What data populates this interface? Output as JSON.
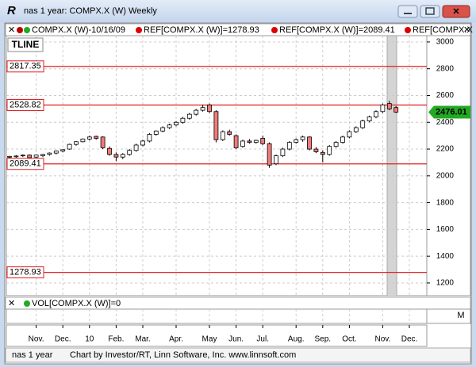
{
  "window": {
    "title": "nas 1 year: COMPX.X (W) Weekly",
    "legend": [
      "COMPX.X (W)-10/16/09",
      "REF[COMPX.X (W)]=1278.93",
      "REF[COMPX.X (W)]=2089.41",
      "REF[COMPX.X"
    ],
    "tline_label": "TLINE",
    "volume_legend": "VOL[COMPX.X (W)]=0",
    "volume_axis_label": "M",
    "status": [
      "nas 1 year",
      "Chart by Investor/RT, Linn Software, Inc. www.linnsoft.com"
    ]
  },
  "chart_data": {
    "type": "candlestick",
    "categories": [
      null,
      null,
      null,
      null,
      "Nov.",
      null,
      null,
      null,
      "Dec.",
      null,
      null,
      null,
      "10",
      null,
      null,
      null,
      "Feb.",
      null,
      null,
      null,
      "Mar.",
      null,
      null,
      null,
      null,
      "Apr.",
      null,
      null,
      null,
      null,
      "May",
      null,
      null,
      null,
      "Jun.",
      null,
      null,
      null,
      "Jul.",
      null,
      null,
      null,
      null,
      "Aug.",
      null,
      null,
      null,
      "Sep.",
      null,
      null,
      null,
      "Oct.",
      null,
      null,
      null,
      null,
      "Nov.",
      null,
      null,
      null,
      "Dec.",
      null
    ],
    "open": [
      2140,
      2145,
      2150,
      2155,
      2140,
      2150,
      2160,
      2170,
      2185,
      2200,
      2235,
      2255,
      2275,
      2295,
      2290,
      2205,
      2160,
      2140,
      2160,
      2190,
      2230,
      2260,
      2310,
      2335,
      2360,
      2380,
      2400,
      2430,
      2460,
      2490,
      2530,
      2480,
      2270,
      2330,
      2300,
      2220,
      2260,
      2250,
      2280,
      2240,
      2090,
      2150,
      2200,
      2250,
      2270,
      2290,
      2200,
      2175,
      2160,
      2220,
      2250,
      2290,
      2330,
      2360,
      2410,
      2440,
      2480,
      2540,
      2510,
      null,
      null,
      null
    ],
    "high": [
      2150,
      2155,
      2160,
      2160,
      2160,
      2165,
      2175,
      2190,
      2200,
      2240,
      2260,
      2280,
      2300,
      2300,
      2295,
      2220,
      2175,
      2170,
      2200,
      2240,
      2270,
      2320,
      2340,
      2370,
      2390,
      2410,
      2440,
      2470,
      2500,
      2530,
      2540,
      2490,
      2340,
      2345,
      2310,
      2270,
      2275,
      2270,
      2300,
      2250,
      2160,
      2210,
      2260,
      2280,
      2300,
      2295,
      2215,
      2190,
      2230,
      2260,
      2300,
      2340,
      2370,
      2420,
      2450,
      2490,
      2540,
      2560,
      2520,
      null,
      null,
      null
    ],
    "low": [
      2130,
      2135,
      2140,
      2125,
      2130,
      2140,
      2150,
      2160,
      2175,
      2195,
      2225,
      2250,
      2265,
      2270,
      2200,
      2150,
      2110,
      2125,
      2150,
      2180,
      2220,
      2250,
      2300,
      2325,
      2350,
      2370,
      2390,
      2420,
      2450,
      2480,
      2470,
      2250,
      2260,
      2300,
      2200,
      2210,
      2240,
      2240,
      2230,
      2060,
      2080,
      2140,
      2190,
      2240,
      2255,
      2190,
      2170,
      2100,
      2150,
      2210,
      2240,
      2280,
      2320,
      2350,
      2400,
      2430,
      2470,
      2490,
      2470,
      null,
      null,
      null
    ],
    "close": [
      2145,
      2148,
      2155,
      2135,
      2155,
      2160,
      2170,
      2185,
      2195,
      2235,
      2255,
      2275,
      2290,
      2280,
      2210,
      2160,
      2140,
      2160,
      2190,
      2230,
      2260,
      2310,
      2335,
      2360,
      2380,
      2400,
      2430,
      2460,
      2490,
      2510,
      2480,
      2270,
      2330,
      2310,
      2210,
      2260,
      2250,
      2265,
      2240,
      2080,
      2150,
      2200,
      2250,
      2270,
      2290,
      2200,
      2180,
      2160,
      2220,
      2250,
      2290,
      2330,
      2360,
      2410,
      2440,
      2480,
      2530,
      2500,
      2476.01,
      null,
      null,
      null
    ],
    "up_color": "#ffffff",
    "down_color": "#f07a7a",
    "ylim": [
      1105,
      3047
    ],
    "yticks": [
      1200,
      1400,
      1600,
      1800,
      2000,
      2200,
      2400,
      2600,
      2800,
      3000
    ],
    "grid": true,
    "ref_lines": [
      {
        "value": 2817.35,
        "color": "#e02020"
      },
      {
        "value": 2528.82,
        "color": "#e02020"
      },
      {
        "value": 2089.41,
        "color": "#e02020"
      },
      {
        "value": 1278.93,
        "color": "#e02020"
      }
    ],
    "last_color": "#22aa22"
  }
}
